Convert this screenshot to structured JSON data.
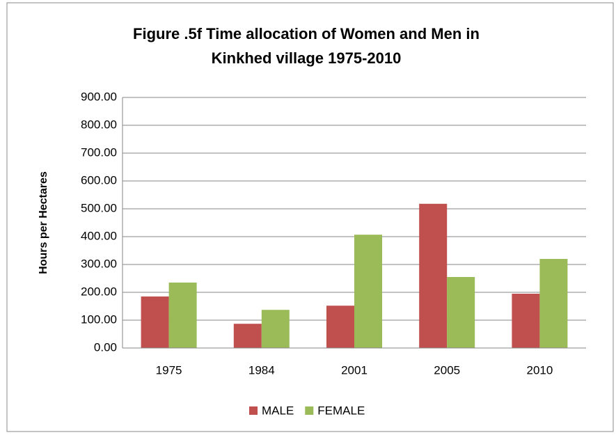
{
  "chart_data": {
    "type": "bar",
    "title": [
      "Figure .5f Time allocation of Women and Men in",
      "Kinkhed village 1975-2010"
    ],
    "y_label": "Hours per Hectares",
    "categories": [
      "1975",
      "1984",
      "2001",
      "2005",
      "2010"
    ],
    "series": [
      {
        "name": "MALE",
        "color": "#c0504d",
        "values": [
          185,
          87,
          152,
          518,
          195
        ]
      },
      {
        "name": "FEMALE",
        "color": "#9bbb59",
        "values": [
          235,
          137,
          407,
          255,
          320
        ]
      }
    ],
    "ylim": [
      0,
      900
    ],
    "yticks": [
      {
        "value": 0,
        "label": "0.00"
      },
      {
        "value": 100,
        "label": "100.00"
      },
      {
        "value": 200,
        "label": "200.00"
      },
      {
        "value": 300,
        "label": "300.00"
      },
      {
        "value": 400,
        "label": "400.00"
      },
      {
        "value": 500,
        "label": "500.00"
      },
      {
        "value": 600,
        "label": "600.00"
      },
      {
        "value": 700,
        "label": "700.00"
      },
      {
        "value": 800,
        "label": "800.00"
      },
      {
        "value": 900,
        "label": "900.00"
      }
    ],
    "grid": true,
    "legend": "bottom"
  }
}
